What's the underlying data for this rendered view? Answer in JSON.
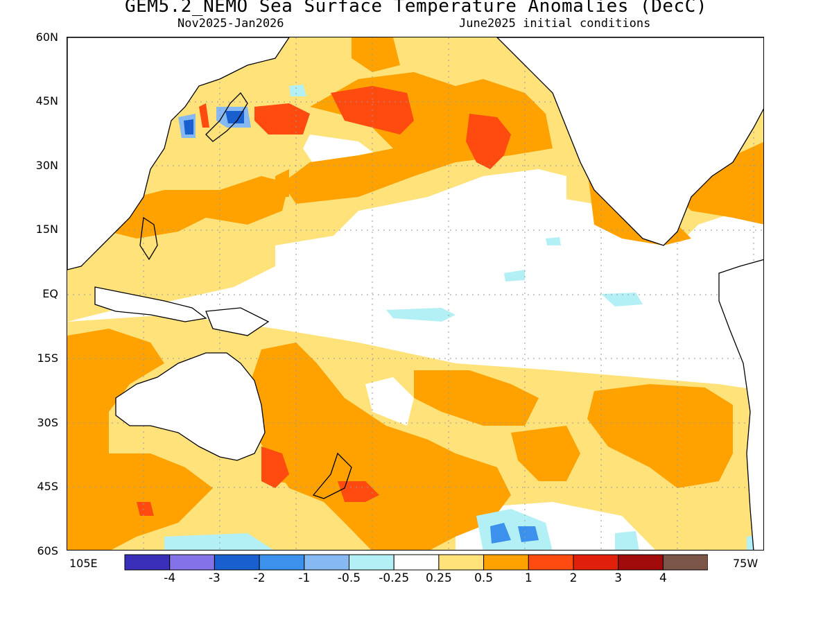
{
  "title": "GEM5.2_NEMO Sea Surface Temperature Anomalies (DecC)",
  "subtitle_left": "Nov2025-Jan2026",
  "subtitle_right": "June2025 initial conditions",
  "lat_labels": [
    "60N",
    "45N",
    "30N",
    "15N",
    "EQ",
    "15S",
    "30S",
    "45S",
    "60S"
  ],
  "lon_labels": {
    "left": "105E",
    "right": "75W"
  },
  "colorbar": {
    "bins": [
      {
        "color": "#3a2fb8"
      },
      {
        "color": "#8472e8"
      },
      {
        "color": "#1a5fd0"
      },
      {
        "color": "#3c91ec"
      },
      {
        "color": "#86b8f2"
      },
      {
        "color": "#b3f0f5"
      },
      {
        "color": "#ffffff"
      },
      {
        "color": "#ffe27a"
      },
      {
        "color": "#ffa200"
      },
      {
        "color": "#ff4a10"
      },
      {
        "color": "#e0200b"
      },
      {
        "color": "#a20b0b"
      },
      {
        "color": "#7a5548"
      }
    ],
    "labels": [
      "-4",
      "-3",
      "-2",
      "-1",
      "-0.5",
      "-0.25",
      "0.25",
      "0.5",
      "1",
      "2",
      "3",
      "4"
    ]
  },
  "colors": {
    "land_outline": "#000000",
    "anom_025": "#ffe27a",
    "anom_05": "#ffa200",
    "anom_1": "#ff4a10",
    "neg_025": "#b3f0f5",
    "neg_05": "#86b8f2",
    "neg_1": "#3c91ec",
    "neg_2": "#1a5fd0"
  }
}
